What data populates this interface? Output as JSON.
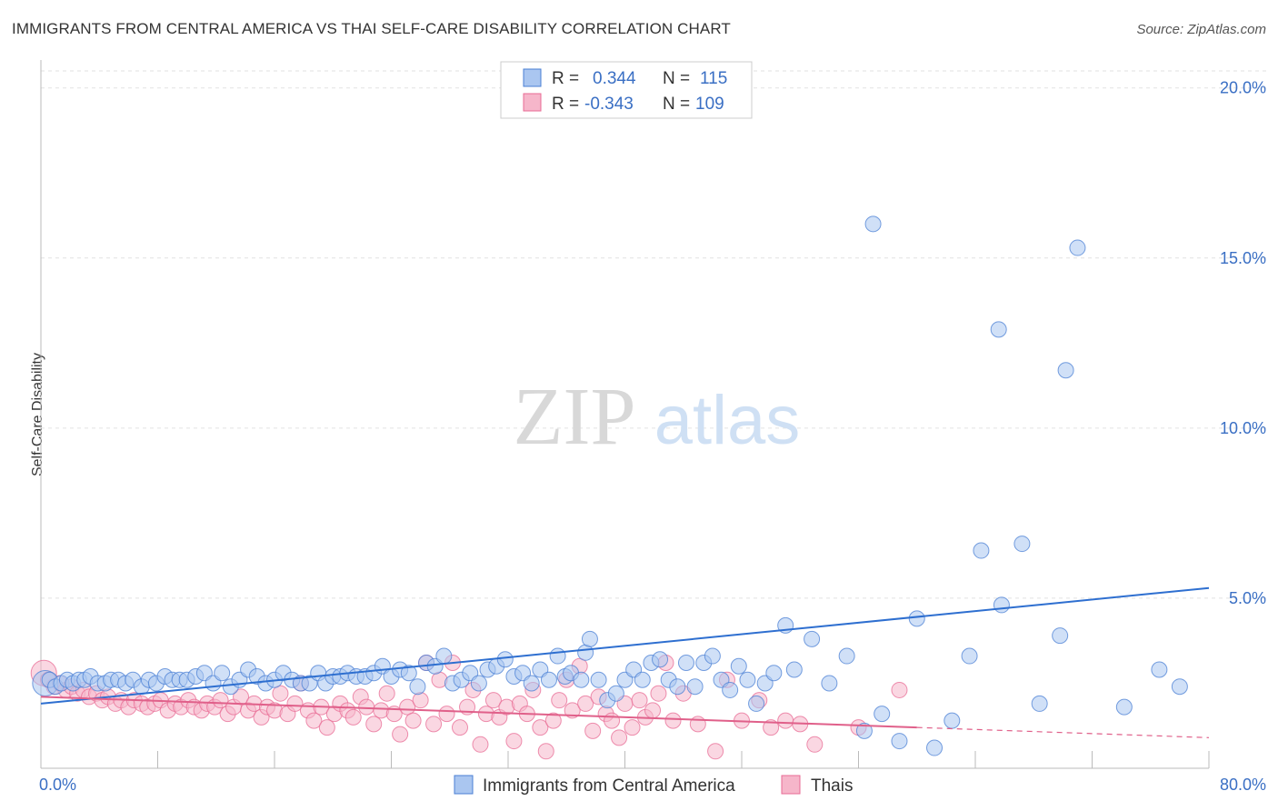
{
  "title": "IMMIGRANTS FROM CENTRAL AMERICA VS THAI SELF-CARE DISABILITY CORRELATION CHART",
  "source": "Source: ZipAtlas.com",
  "watermark": {
    "zip": "ZIP",
    "atlas": "atlas"
  },
  "colors": {
    "blue": "#4a7fd4",
    "pink": "#e86b94",
    "blue_fill": "#aac6f0",
    "pink_fill": "#f6b6ca",
    "axis_text": "#3a6fc4"
  },
  "legend_stats": [
    {
      "r_label": "R =",
      "r_value": "0.344",
      "n_label": "N =",
      "n_value": "115",
      "color": "blue"
    },
    {
      "r_label": "R =",
      "r_value": "-0.343",
      "n_label": "N =",
      "n_value": "109",
      "color": "pink"
    }
  ],
  "chart_data": {
    "type": "scatter",
    "xlabel": "",
    "ylabel": "Self-Care Disability",
    "xlim": [
      0,
      80
    ],
    "ylim": [
      0,
      20.5
    ],
    "x_ticks": [
      "0.0%",
      "80.0%"
    ],
    "y_ticks": [
      "5.0%",
      "10.0%",
      "15.0%",
      "20.0%"
    ],
    "y_tick_values": [
      5,
      10,
      15,
      20
    ],
    "grid": true,
    "legend_position": "bottom-center",
    "series": [
      {
        "name": "Immigrants from Central America",
        "color": "blue",
        "trend": {
          "x0": 0,
          "y0": 1.9,
          "x1": 80,
          "y1": 5.3
        },
        "points": [
          [
            0.3,
            2.5
          ],
          [
            0.6,
            2.6
          ],
          [
            1.0,
            2.4
          ],
          [
            1.4,
            2.5
          ],
          [
            1.8,
            2.6
          ],
          [
            2.2,
            2.5
          ],
          [
            2.6,
            2.6
          ],
          [
            3.0,
            2.6
          ],
          [
            3.4,
            2.7
          ],
          [
            3.9,
            2.5
          ],
          [
            4.4,
            2.5
          ],
          [
            4.8,
            2.6
          ],
          [
            5.3,
            2.6
          ],
          [
            5.8,
            2.5
          ],
          [
            6.3,
            2.6
          ],
          [
            6.9,
            2.4
          ],
          [
            7.4,
            2.6
          ],
          [
            7.9,
            2.5
          ],
          [
            8.5,
            2.7
          ],
          [
            9.0,
            2.6
          ],
          [
            9.5,
            2.6
          ],
          [
            10.0,
            2.6
          ],
          [
            10.6,
            2.7
          ],
          [
            11.2,
            2.8
          ],
          [
            11.8,
            2.5
          ],
          [
            12.4,
            2.8
          ],
          [
            13.0,
            2.4
          ],
          [
            13.6,
            2.6
          ],
          [
            14.2,
            2.9
          ],
          [
            14.8,
            2.7
          ],
          [
            15.4,
            2.5
          ],
          [
            16.0,
            2.6
          ],
          [
            16.6,
            2.8
          ],
          [
            17.2,
            2.6
          ],
          [
            17.8,
            2.5
          ],
          [
            18.4,
            2.5
          ],
          [
            19.0,
            2.8
          ],
          [
            19.5,
            2.5
          ],
          [
            20.0,
            2.7
          ],
          [
            20.5,
            2.7
          ],
          [
            21.0,
            2.8
          ],
          [
            21.6,
            2.7
          ],
          [
            22.2,
            2.7
          ],
          [
            22.8,
            2.8
          ],
          [
            23.4,
            3.0
          ],
          [
            24.0,
            2.7
          ],
          [
            24.6,
            2.9
          ],
          [
            25.2,
            2.8
          ],
          [
            25.8,
            2.4
          ],
          [
            26.4,
            3.1
          ],
          [
            27.0,
            3.0
          ],
          [
            27.6,
            3.3
          ],
          [
            28.2,
            2.5
          ],
          [
            28.8,
            2.6
          ],
          [
            29.4,
            2.8
          ],
          [
            30.0,
            2.5
          ],
          [
            30.6,
            2.9
          ],
          [
            31.2,
            3.0
          ],
          [
            31.8,
            3.2
          ],
          [
            32.4,
            2.7
          ],
          [
            33.0,
            2.8
          ],
          [
            33.6,
            2.5
          ],
          [
            34.2,
            2.9
          ],
          [
            34.8,
            2.6
          ],
          [
            35.4,
            3.3
          ],
          [
            35.9,
            2.7
          ],
          [
            36.3,
            2.8
          ],
          [
            37.0,
            2.6
          ],
          [
            37.3,
            3.4
          ],
          [
            37.6,
            3.8
          ],
          [
            38.2,
            2.6
          ],
          [
            38.8,
            2.0
          ],
          [
            39.4,
            2.2
          ],
          [
            40.0,
            2.6
          ],
          [
            40.6,
            2.9
          ],
          [
            41.2,
            2.6
          ],
          [
            41.8,
            3.1
          ],
          [
            42.4,
            3.2
          ],
          [
            43.0,
            2.6
          ],
          [
            43.6,
            2.4
          ],
          [
            44.2,
            3.1
          ],
          [
            44.8,
            2.4
          ],
          [
            45.4,
            3.1
          ],
          [
            46.0,
            3.3
          ],
          [
            46.6,
            2.6
          ],
          [
            47.2,
            2.3
          ],
          [
            47.8,
            3.0
          ],
          [
            48.4,
            2.6
          ],
          [
            49.0,
            1.9
          ],
          [
            49.6,
            2.5
          ],
          [
            50.2,
            2.8
          ],
          [
            51.0,
            4.2
          ],
          [
            51.6,
            2.9
          ],
          [
            52.8,
            3.8
          ],
          [
            54.0,
            2.5
          ],
          [
            55.2,
            3.3
          ],
          [
            56.4,
            1.1
          ],
          [
            57.0,
            16.0
          ],
          [
            57.6,
            1.6
          ],
          [
            58.8,
            0.8
          ],
          [
            60.0,
            4.4
          ],
          [
            61.2,
            0.6
          ],
          [
            62.4,
            1.4
          ],
          [
            63.6,
            3.3
          ],
          [
            64.4,
            6.4
          ],
          [
            65.6,
            12.9
          ],
          [
            65.8,
            4.8
          ],
          [
            67.2,
            6.6
          ],
          [
            68.4,
            1.9
          ],
          [
            69.8,
            3.9
          ],
          [
            70.2,
            11.7
          ],
          [
            71.0,
            15.3
          ],
          [
            74.2,
            1.8
          ],
          [
            76.6,
            2.9
          ],
          [
            78.0,
            2.4
          ]
        ]
      },
      {
        "name": "Thais",
        "color": "pink",
        "trend": {
          "x0": 0,
          "y0": 2.1,
          "x1": 60,
          "y1": 1.2,
          "dash_to_x": 80,
          "dash_to_y": 0.9
        },
        "points": [
          [
            0.2,
            2.8
          ],
          [
            0.5,
            2.6
          ],
          [
            0.9,
            2.4
          ],
          [
            1.3,
            2.5
          ],
          [
            1.7,
            2.3
          ],
          [
            2.1,
            2.4
          ],
          [
            2.5,
            2.2
          ],
          [
            2.9,
            2.3
          ],
          [
            3.3,
            2.1
          ],
          [
            3.8,
            2.2
          ],
          [
            4.2,
            2.0
          ],
          [
            4.6,
            2.1
          ],
          [
            5.1,
            1.9
          ],
          [
            5.5,
            2.0
          ],
          [
            6.0,
            1.8
          ],
          [
            6.4,
            2.0
          ],
          [
            6.9,
            1.9
          ],
          [
            7.3,
            1.8
          ],
          [
            7.8,
            1.9
          ],
          [
            8.2,
            2.0
          ],
          [
            8.7,
            1.7
          ],
          [
            9.2,
            1.9
          ],
          [
            9.6,
            1.8
          ],
          [
            10.1,
            2.0
          ],
          [
            10.5,
            1.8
          ],
          [
            11.0,
            1.7
          ],
          [
            11.4,
            1.9
          ],
          [
            11.9,
            1.8
          ],
          [
            12.3,
            2.0
          ],
          [
            12.8,
            1.6
          ],
          [
            13.2,
            1.8
          ],
          [
            13.7,
            2.1
          ],
          [
            14.2,
            1.7
          ],
          [
            14.6,
            1.9
          ],
          [
            15.1,
            1.5
          ],
          [
            15.5,
            1.8
          ],
          [
            16.0,
            1.7
          ],
          [
            16.4,
            2.2
          ],
          [
            16.9,
            1.6
          ],
          [
            17.4,
            1.9
          ],
          [
            17.8,
            2.5
          ],
          [
            18.3,
            1.7
          ],
          [
            18.7,
            1.4
          ],
          [
            19.2,
            1.8
          ],
          [
            19.6,
            1.2
          ],
          [
            20.1,
            1.6
          ],
          [
            20.5,
            1.9
          ],
          [
            21.0,
            1.7
          ],
          [
            21.4,
            1.5
          ],
          [
            21.9,
            2.1
          ],
          [
            22.3,
            1.8
          ],
          [
            22.8,
            1.3
          ],
          [
            23.3,
            1.7
          ],
          [
            23.7,
            2.2
          ],
          [
            24.2,
            1.6
          ],
          [
            24.6,
            1.0
          ],
          [
            25.1,
            1.8
          ],
          [
            25.5,
            1.4
          ],
          [
            26.0,
            2.0
          ],
          [
            26.4,
            3.1
          ],
          [
            26.9,
            1.3
          ],
          [
            27.3,
            2.6
          ],
          [
            27.8,
            1.6
          ],
          [
            28.2,
            3.1
          ],
          [
            28.7,
            1.2
          ],
          [
            29.2,
            1.8
          ],
          [
            29.6,
            2.3
          ],
          [
            30.1,
            0.7
          ],
          [
            30.5,
            1.6
          ],
          [
            31.0,
            2.0
          ],
          [
            31.4,
            1.5
          ],
          [
            31.9,
            1.8
          ],
          [
            32.4,
            0.8
          ],
          [
            32.8,
            1.9
          ],
          [
            33.3,
            1.6
          ],
          [
            33.7,
            2.3
          ],
          [
            34.2,
            1.2
          ],
          [
            34.6,
            0.5
          ],
          [
            35.1,
            1.4
          ],
          [
            35.5,
            2.0
          ],
          [
            36.0,
            2.6
          ],
          [
            36.4,
            1.7
          ],
          [
            36.9,
            3.0
          ],
          [
            37.3,
            1.9
          ],
          [
            37.8,
            1.1
          ],
          [
            38.2,
            2.1
          ],
          [
            38.7,
            1.6
          ],
          [
            39.1,
            1.4
          ],
          [
            39.6,
            0.9
          ],
          [
            40.0,
            1.9
          ],
          [
            40.5,
            1.2
          ],
          [
            41.0,
            2.0
          ],
          [
            41.4,
            1.5
          ],
          [
            41.9,
            1.7
          ],
          [
            42.3,
            2.2
          ],
          [
            42.8,
            3.1
          ],
          [
            43.3,
            1.4
          ],
          [
            44.0,
            2.2
          ],
          [
            45.0,
            1.3
          ],
          [
            46.2,
            0.5
          ],
          [
            47.0,
            2.6
          ],
          [
            48.0,
            1.4
          ],
          [
            49.2,
            2.0
          ],
          [
            50.0,
            1.2
          ],
          [
            51.0,
            1.4
          ],
          [
            52.0,
            1.3
          ],
          [
            53.0,
            0.7
          ],
          [
            56.0,
            1.2
          ],
          [
            58.8,
            2.3
          ]
        ]
      }
    ]
  }
}
